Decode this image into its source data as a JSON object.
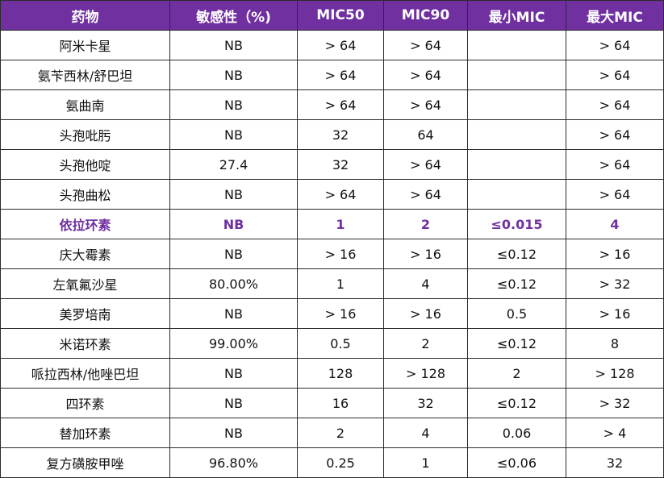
{
  "table": {
    "headers": [
      "药物",
      "敏感性（%)",
      "MIC50",
      "MIC90",
      "最小MIC",
      "最大MIC"
    ],
    "rows": [
      {
        "cells": [
          "阿米卡星",
          "NB",
          "> 64",
          "> 64",
          "",
          "> 64"
        ]
      },
      {
        "cells": [
          "氨苄西林/舒巴坦",
          "NB",
          "> 64",
          "> 64",
          "",
          "> 64"
        ]
      },
      {
        "cells": [
          "氨曲南",
          "NB",
          "> 64",
          "> 64",
          "",
          "> 64"
        ]
      },
      {
        "cells": [
          "头孢吡肟",
          "NB",
          "32",
          "64",
          "",
          "> 64"
        ]
      },
      {
        "cells": [
          "头孢他啶",
          "27.4",
          "32",
          "> 64",
          "",
          "> 64"
        ]
      },
      {
        "cells": [
          "头孢曲松",
          "NB",
          "> 64",
          "> 64",
          "",
          "> 64"
        ]
      },
      {
        "cells": [
          "依拉环素",
          "NB",
          "1",
          "2",
          "≤0.015",
          "4"
        ],
        "highlight": true
      },
      {
        "cells": [
          "庆大霉素",
          "NB",
          "> 16",
          "> 16",
          "≤0.12",
          "> 16"
        ]
      },
      {
        "cells": [
          "左氧氟沙星",
          "80.00%",
          "1",
          "4",
          "≤0.12",
          "> 32"
        ]
      },
      {
        "cells": [
          "美罗培南",
          "NB",
          "> 16",
          "> 16",
          "0.5",
          "> 16"
        ]
      },
      {
        "cells": [
          "米诺环素",
          "99.00%",
          "0.5",
          "2",
          "≤0.12",
          "8"
        ]
      },
      {
        "cells": [
          "哌拉西林/他唑巴坦",
          "NB",
          "128",
          "> 128",
          "2",
          "> 128"
        ]
      },
      {
        "cells": [
          "四环素",
          "NB",
          "16",
          "32",
          "≤0.12",
          "> 32"
        ]
      },
      {
        "cells": [
          "替加环素",
          "NB",
          "2",
          "4",
          "0.06",
          "> 4"
        ]
      },
      {
        "cells": [
          "复方磺胺甲唑",
          "96.80%",
          "0.25",
          "1",
          "≤0.06",
          "32"
        ]
      }
    ]
  },
  "colors": {
    "header_bg": "#7030a0",
    "header_text": "#ffffff",
    "highlight_text": "#7030a0",
    "border": "#2b2b2b"
  }
}
